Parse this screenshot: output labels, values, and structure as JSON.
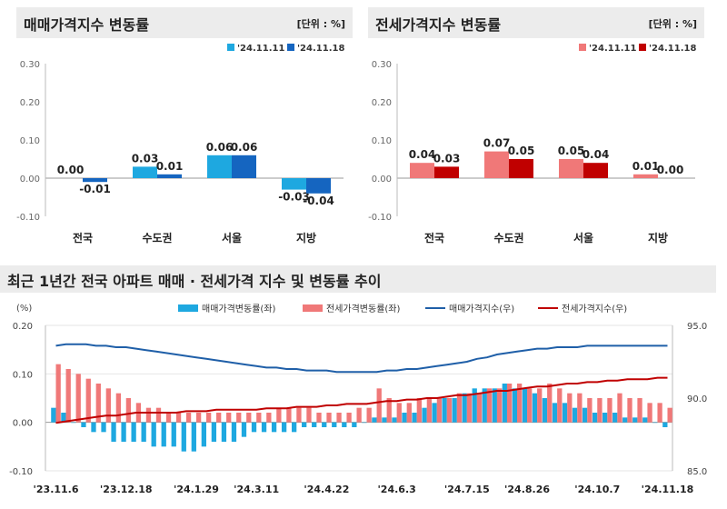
{
  "chart_data": [
    {
      "type": "bar",
      "title": "매매가격지수 변동률",
      "unit": "[단위 : %]",
      "categories": [
        "전국",
        "수도권",
        "서울",
        "지방"
      ],
      "series": [
        {
          "name": "'24.11.11",
          "values": [
            0.0,
            0.03,
            0.06,
            -0.03
          ],
          "color": "#1ea8e0"
        },
        {
          "name": "'24.11.18",
          "values": [
            -0.01,
            0.01,
            0.06,
            -0.04
          ],
          "color": "#1565c0"
        }
      ],
      "data_labels": [
        [
          "0.00",
          "0.03",
          "0.06",
          "-0.03"
        ],
        [
          "-0.01",
          "0.01",
          "0.06",
          "-0.04"
        ]
      ],
      "ylim": [
        -0.1,
        0.3
      ],
      "yticks": [
        "0.30",
        "0.20",
        "0.10",
        "0.00",
        "-0.10"
      ],
      "legend_position": "top-right"
    },
    {
      "type": "bar",
      "title": "전세가격지수 변동률",
      "unit": "[단위 : %]",
      "categories": [
        "전국",
        "수도권",
        "서울",
        "지방"
      ],
      "series": [
        {
          "name": "'24.11.11",
          "values": [
            0.04,
            0.07,
            0.05,
            0.01
          ],
          "color": "#f07878"
        },
        {
          "name": "'24.11.18",
          "values": [
            0.03,
            0.05,
            0.04,
            0.0
          ],
          "color": "#c00000"
        }
      ],
      "data_labels": [
        [
          "0.04",
          "0.07",
          "0.05",
          "0.01"
        ],
        [
          "0.03",
          "0.05",
          "0.04",
          "0.00"
        ]
      ],
      "ylim": [
        -0.1,
        0.3
      ],
      "yticks": [
        "0.30",
        "0.20",
        "0.10",
        "0.00",
        "-0.10"
      ],
      "legend_position": "top-right"
    },
    {
      "type": "bar",
      "title": "최근 1년간 전국 아파트 매매 · 전세가격 지수 및 변동률 추이",
      "left_axis_label": "(%)",
      "left_ylim": [
        -0.1,
        0.2
      ],
      "left_yticks": [
        "0.20",
        "0.10",
        "0.00",
        "-0.10"
      ],
      "right_ylim": [
        85.0,
        95.0
      ],
      "right_yticks": [
        "95.0",
        "90.0",
        "85.0"
      ],
      "x_tick_labels": [
        "'23.11.6",
        "'23.12.18",
        "'24.1.29",
        "'24.3.11",
        "'24.4.22",
        "'24.6.3",
        "'24.7.15",
        "'24.8.26",
        "'24.10.7",
        "'24.11.18"
      ],
      "legend": [
        "매매가격변동률(좌)",
        "전세가격변동률(좌)",
        "매매가격지수(우)",
        "전세가격지수(우)"
      ],
      "legend_position": "top",
      "colors": {
        "sale_bar": "#1ea8e0",
        "jeonse_bar": "#f07878",
        "sale_index": "#1f5fa8",
        "jeonse_index": "#c00000"
      },
      "sale_change": [
        0.03,
        0.02,
        0.0,
        -0.01,
        -0.02,
        -0.02,
        -0.04,
        -0.04,
        -0.04,
        -0.04,
        -0.05,
        -0.05,
        -0.05,
        -0.06,
        -0.06,
        -0.05,
        -0.04,
        -0.04,
        -0.04,
        -0.03,
        -0.02,
        -0.02,
        -0.02,
        -0.02,
        -0.02,
        -0.01,
        -0.01,
        -0.01,
        -0.01,
        -0.01,
        -0.01,
        0.0,
        0.01,
        0.01,
        0.01,
        0.02,
        0.02,
        0.03,
        0.04,
        0.05,
        0.05,
        0.06,
        0.07,
        0.07,
        0.07,
        0.08,
        0.07,
        0.07,
        0.06,
        0.05,
        0.04,
        0.04,
        0.03,
        0.03,
        0.02,
        0.02,
        0.02,
        0.01,
        0.01,
        0.01,
        0.0,
        -0.01
      ],
      "jeonse_change": [
        0.12,
        0.11,
        0.1,
        0.09,
        0.08,
        0.07,
        0.06,
        0.05,
        0.04,
        0.03,
        0.03,
        0.02,
        0.02,
        0.02,
        0.02,
        0.02,
        0.02,
        0.02,
        0.02,
        0.02,
        0.02,
        0.02,
        0.03,
        0.03,
        0.03,
        0.03,
        0.02,
        0.02,
        0.02,
        0.02,
        0.03,
        0.03,
        0.07,
        0.05,
        0.04,
        0.04,
        0.05,
        0.05,
        0.05,
        0.05,
        0.06,
        0.06,
        0.06,
        0.07,
        0.07,
        0.08,
        0.08,
        0.07,
        0.07,
        0.08,
        0.07,
        0.06,
        0.06,
        0.05,
        0.05,
        0.05,
        0.06,
        0.05,
        0.05,
        0.04,
        0.04,
        0.03
      ],
      "sale_index": [
        93.6,
        93.7,
        93.7,
        93.7,
        93.6,
        93.6,
        93.5,
        93.5,
        93.4,
        93.3,
        93.2,
        93.1,
        93.0,
        92.9,
        92.8,
        92.7,
        92.6,
        92.5,
        92.4,
        92.3,
        92.2,
        92.1,
        92.1,
        92.0,
        92.0,
        91.9,
        91.9,
        91.9,
        91.8,
        91.8,
        91.8,
        91.8,
        91.8,
        91.9,
        91.9,
        92.0,
        92.0,
        92.1,
        92.2,
        92.3,
        92.4,
        92.5,
        92.7,
        92.8,
        93.0,
        93.1,
        93.2,
        93.3,
        93.4,
        93.4,
        93.5,
        93.5,
        93.5,
        93.6,
        93.6,
        93.6,
        93.6,
        93.6,
        93.6,
        93.6,
        93.6,
        93.6
      ],
      "jeonse_index": [
        88.3,
        88.4,
        88.5,
        88.6,
        88.7,
        88.8,
        88.8,
        88.9,
        89.0,
        89.0,
        89.0,
        89.0,
        89.0,
        89.1,
        89.1,
        89.1,
        89.2,
        89.2,
        89.2,
        89.2,
        89.2,
        89.3,
        89.3,
        89.3,
        89.4,
        89.4,
        89.4,
        89.5,
        89.5,
        89.6,
        89.6,
        89.6,
        89.7,
        89.8,
        89.8,
        89.9,
        89.9,
        90.0,
        90.0,
        90.1,
        90.2,
        90.2,
        90.3,
        90.4,
        90.5,
        90.5,
        90.6,
        90.7,
        90.8,
        90.8,
        90.9,
        91.0,
        91.0,
        91.1,
        91.1,
        91.2,
        91.2,
        91.3,
        91.3,
        91.3,
        91.4,
        91.4
      ]
    }
  ]
}
